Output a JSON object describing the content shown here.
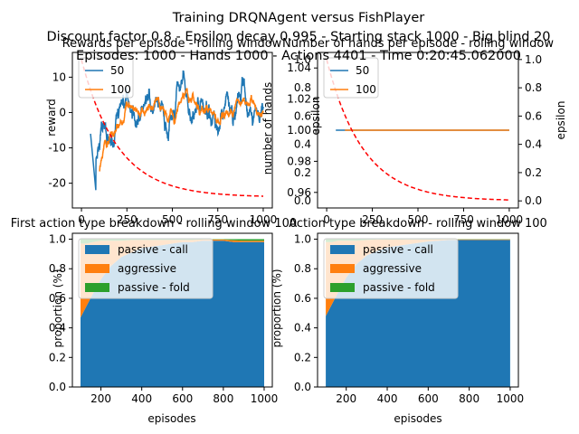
{
  "figure": {
    "title_lines": [
      "Training DRQNAgent versus FishPlayer",
      "Discount factor 0.8 - Epsilon decay 0.995 - Starting stack 1000 - Big blind 20",
      "Episodes: 1000 - Hands 1000 - Actions 4401 - Time 0:20:45.062000"
    ]
  },
  "colors": {
    "blue": "#1f77b4",
    "orange": "#ff7f0e",
    "green": "#2ca02c",
    "red": "#ff0000"
  },
  "chart_data": [
    {
      "id": "rewards",
      "type": "line",
      "title": "Rewards per episode - rolling window",
      "xlabel": "",
      "ylabel": "reward",
      "y2label": "",
      "xlim": [
        -50,
        1050
      ],
      "ylim": [
        -27,
        17
      ],
      "y2lim": [
        0,
        1
      ],
      "xticks": [
        0,
        250,
        500,
        750,
        1000
      ],
      "yticks": [
        -20,
        -10,
        0,
        10
      ],
      "legend": {
        "position": "top-left",
        "entries": [
          "50",
          "100"
        ]
      },
      "series": [
        {
          "name": "50",
          "color": "blue",
          "window": 50,
          "start": 50,
          "end": 1000
        },
        {
          "name": "100",
          "color": "orange",
          "window": 100,
          "start": 100,
          "end": 1000
        }
      ],
      "secondary_series": [
        {
          "name": "epsilon",
          "color": "red",
          "style": "dashed",
          "decay": 0.995,
          "start": 0,
          "end": 1000
        }
      ]
    },
    {
      "id": "hands",
      "type": "line",
      "title": "Number of hands per episode - rolling window",
      "xlabel": "",
      "ylabel": "number of hands",
      "y2label": "epsilon",
      "xlim": [
        -50,
        1050
      ],
      "ylim": [
        0.95,
        1.05
      ],
      "y2lim": [
        -0.05,
        1.05
      ],
      "xticks": [
        0,
        250,
        500,
        750,
        1000
      ],
      "yticks": [
        0.96,
        0.98,
        1.0,
        1.02,
        1.04
      ],
      "yticklabels": [
        "0.96",
        "0.98",
        "1.00",
        "1.02",
        "1.04"
      ],
      "left_extra_ticks": [
        "0.0",
        "0.2",
        "0.4",
        "0.6",
        "0.8",
        "1.0"
      ],
      "y2ticks": [
        0.0,
        0.2,
        0.4,
        0.6,
        0.8,
        1.0
      ],
      "y2ticklabels": [
        "0.0",
        "0.2",
        "0.4",
        "0.6",
        "0.8",
        "1.0"
      ],
      "legend": {
        "position": "top-left",
        "entries": [
          "50",
          "100"
        ]
      },
      "series": [
        {
          "name": "50",
          "color": "blue",
          "x": [
            50,
            1000
          ],
          "values": [
            1.0,
            1.0
          ]
        },
        {
          "name": "100",
          "color": "orange",
          "x": [
            100,
            1000
          ],
          "values": [
            1.0,
            1.0
          ]
        }
      ],
      "secondary_series": [
        {
          "name": "epsilon",
          "color": "red",
          "style": "dashed",
          "decay": 0.995,
          "start": 0,
          "end": 1000
        }
      ]
    },
    {
      "id": "first_action",
      "type": "area",
      "title": "First action type breakdown - rolling window 100",
      "xlabel": "episodes",
      "ylabel": "proportion (%)",
      "xlim": [
        60,
        1040
      ],
      "ylim": [
        0,
        1.04
      ],
      "xticks": [
        200,
        400,
        600,
        800,
        1000
      ],
      "yticks": [
        0.0,
        0.2,
        0.4,
        0.6,
        0.8,
        1.0
      ],
      "legend": {
        "position": "top-left",
        "entries": [
          "passive - call",
          "aggressive",
          "passive - fold"
        ]
      },
      "x": [
        100,
        130,
        160,
        200,
        250,
        300,
        350,
        400,
        450,
        500,
        550,
        600,
        650,
        700,
        750,
        800,
        850,
        900,
        950,
        1000
      ],
      "series": [
        {
          "name": "passive - call",
          "color": "blue",
          "values": [
            0.47,
            0.55,
            0.63,
            0.73,
            0.82,
            0.88,
            0.91,
            0.94,
            0.95,
            0.96,
            0.97,
            0.98,
            0.98,
            0.99,
            0.99,
            0.99,
            0.98,
            0.98,
            0.98,
            0.98
          ]
        },
        {
          "name": "aggressive",
          "color": "orange",
          "values": [
            0.5,
            0.42,
            0.35,
            0.26,
            0.17,
            0.11,
            0.085,
            0.055,
            0.045,
            0.035,
            0.025,
            0.015,
            0.015,
            0.008,
            0.008,
            0.008,
            0.012,
            0.01,
            0.01,
            0.01
          ]
        },
        {
          "name": "passive - fold",
          "color": "green",
          "values": [
            0.03,
            0.03,
            0.02,
            0.01,
            0.01,
            0.01,
            0.005,
            0.005,
            0.005,
            0.005,
            0.005,
            0.005,
            0.005,
            0.002,
            0.002,
            0.002,
            0.008,
            0.01,
            0.01,
            0.01
          ]
        }
      ]
    },
    {
      "id": "action_breakdown",
      "type": "area",
      "title": "Action type breakdown - rolling window 100",
      "xlabel": "episodes",
      "ylabel": "proportion (%)",
      "xlim": [
        60,
        1040
      ],
      "ylim": [
        0,
        1.04
      ],
      "xticks": [
        200,
        400,
        600,
        800,
        1000
      ],
      "yticks": [
        0.0,
        0.2,
        0.4,
        0.6,
        0.8,
        1.0
      ],
      "legend": {
        "position": "top-left",
        "entries": [
          "passive - call",
          "aggressive",
          "passive - fold"
        ]
      },
      "x": [
        100,
        130,
        160,
        200,
        250,
        300,
        350,
        400,
        450,
        500,
        550,
        600,
        650,
        700,
        750,
        800,
        850,
        900,
        950,
        1000
      ],
      "series": [
        {
          "name": "passive - call",
          "color": "blue",
          "values": [
            0.48,
            0.56,
            0.64,
            0.74,
            0.83,
            0.89,
            0.92,
            0.945,
            0.955,
            0.965,
            0.975,
            0.985,
            0.99,
            0.995,
            0.995,
            0.995,
            0.995,
            0.995,
            0.995,
            0.995
          ]
        },
        {
          "name": "aggressive",
          "color": "orange",
          "values": [
            0.5,
            0.42,
            0.35,
            0.25,
            0.16,
            0.105,
            0.078,
            0.052,
            0.042,
            0.033,
            0.023,
            0.013,
            0.008,
            0.004,
            0.004,
            0.004,
            0.004,
            0.004,
            0.004,
            0.004
          ]
        },
        {
          "name": "passive - fold",
          "color": "green",
          "values": [
            0.02,
            0.02,
            0.01,
            0.01,
            0.01,
            0.005,
            0.002,
            0.003,
            0.003,
            0.002,
            0.002,
            0.002,
            0.002,
            0.001,
            0.001,
            0.001,
            0.001,
            0.001,
            0.001,
            0.001
          ]
        }
      ]
    }
  ]
}
